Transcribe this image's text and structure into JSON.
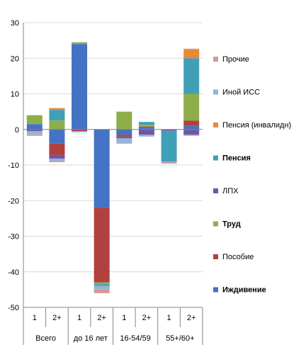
{
  "chart_data": {
    "type": "bar",
    "stacked": true,
    "groups": [
      "Всего",
      "до 16 лет",
      "16-54/59",
      "55+/60+"
    ],
    "categories": [
      "1",
      "2+",
      "1",
      "2+",
      "1",
      "2+",
      "1",
      "2+"
    ],
    "ylim": [
      -50,
      30
    ],
    "yticks": [
      "-50",
      "-40",
      "-30",
      "-20",
      "-10",
      "0",
      "10",
      "20",
      "30"
    ],
    "legend_position": "right",
    "series": [
      {
        "name": "Иждивение",
        "color": "#4472C4",
        "bold": true,
        "values": [
          1.5,
          -4.0,
          24.0,
          -22.0,
          -1.5,
          0.5,
          -0.3,
          1.0
        ]
      },
      {
        "name": "Пособие",
        "color": "#B0413E",
        "bold": false,
        "values": [
          0.0,
          -3.2,
          -0.5,
          -21.0,
          -0.5,
          0.3,
          0.0,
          1.5
        ]
      },
      {
        "name": "Труд",
        "color": "#8DAE49",
        "bold": true,
        "values": [
          2.5,
          2.5,
          0.5,
          -0.5,
          5.0,
          0.5,
          0.0,
          7.5
        ]
      },
      {
        "name": "ЛПХ",
        "color": "#7354A3",
        "bold": false,
        "values": [
          -0.5,
          -1.0,
          0.0,
          0.0,
          -0.5,
          -1.5,
          -0.2,
          -1.5
        ]
      },
      {
        "name": "Пенсия",
        "color": "#3FA0B8",
        "bold": true,
        "values": [
          0.0,
          3.0,
          0.0,
          -0.5,
          0.0,
          0.8,
          -8.5,
          10.0
        ]
      },
      {
        "name": "Пенсия (инвалидн)",
        "color": "#E8883A",
        "bold": false,
        "values": [
          0.0,
          0.5,
          0.0,
          0.0,
          0.0,
          0.0,
          0.0,
          2.5
        ]
      },
      {
        "name": "Иной ИСС",
        "color": "#95B3D7",
        "bold": false,
        "values": [
          -1.0,
          -0.7,
          -0.3,
          -1.0,
          -1.5,
          -0.5,
          -0.3,
          -0.3
        ]
      },
      {
        "name": "Прочие",
        "color": "#D99694",
        "bold": false,
        "values": [
          -0.3,
          -0.3,
          0.0,
          -1.0,
          0.0,
          0.0,
          -0.3,
          0.2
        ]
      }
    ]
  }
}
